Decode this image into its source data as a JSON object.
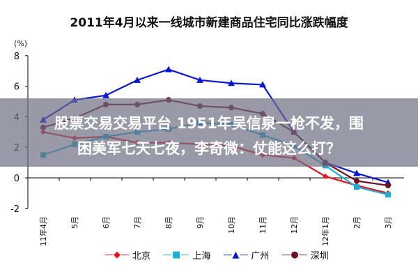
{
  "chart_data": {
    "type": "line",
    "title": "2011年4月以来一线城市新建商品住宅同比涨跌幅度",
    "ylabel": "(%)",
    "ylim": [
      -2,
      8
    ],
    "yticks": [
      -2,
      0,
      2,
      4,
      6,
      8
    ],
    "categories": [
      "11年4月",
      "5月",
      "6月",
      "7月",
      "8月",
      "9月",
      "10月",
      "11月",
      "12月",
      "12年1月",
      "2月",
      "3月"
    ],
    "series": [
      {
        "name": "北京",
        "color": "#e8141e",
        "marker": "diamond",
        "values": [
          3.0,
          2.6,
          2.7,
          2.3,
          2.3,
          2.2,
          2.1,
          1.5,
          1.3,
          0.1,
          -0.5,
          -1.0
        ]
      },
      {
        "name": "上海",
        "color": "#1ab0d8",
        "marker": "square",
        "values": [
          1.5,
          2.2,
          2.7,
          3.0,
          3.2,
          3.6,
          3.5,
          2.8,
          2.1,
          0.8,
          -0.6,
          -1.1
        ]
      },
      {
        "name": "广州",
        "color": "#0a14d8",
        "marker": "triangle",
        "values": [
          3.8,
          5.1,
          5.4,
          6.4,
          7.1,
          6.4,
          6.2,
          6.1,
          3.0,
          1.0,
          0.3,
          -0.3
        ]
      },
      {
        "name": "深圳",
        "color": "#6e1020",
        "marker": "circle",
        "values": [
          3.3,
          3.9,
          4.8,
          4.8,
          5.1,
          4.7,
          4.6,
          4.2,
          3.0,
          1.0,
          -0.2,
          -0.5
        ]
      }
    ],
    "grid": false,
    "legend": "bottom"
  },
  "overlay": {
    "line1": "股票交易交易平台 1951年吴信泉一枪不发，围",
    "line2": "困美军七天七夜，李奇微：仗能这么打？"
  }
}
